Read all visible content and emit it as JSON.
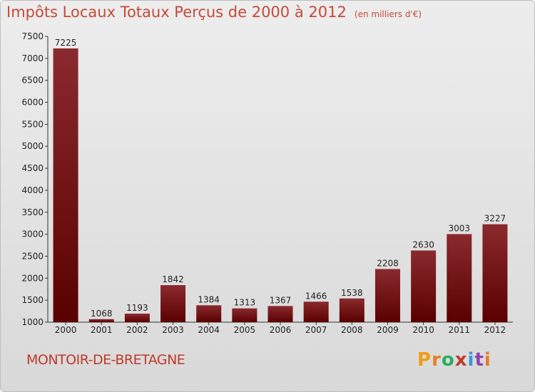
{
  "chart_data": {
    "type": "bar",
    "title": "Impôts Locaux Totaux Perçus de 2000 à 2012",
    "subtitle": "(en milliers d'€)",
    "categories": [
      "2000",
      "2001",
      "2002",
      "2003",
      "2004",
      "2005",
      "2006",
      "2007",
      "2008",
      "2009",
      "2010",
      "2011",
      "2012"
    ],
    "values": [
      7225,
      1068,
      1193,
      1842,
      1384,
      1313,
      1367,
      1466,
      1538,
      2208,
      2630,
      3003,
      3227
    ],
    "ylim": [
      1000,
      7500
    ],
    "yticks": [
      1000,
      1500,
      2000,
      2500,
      3000,
      3500,
      4000,
      4500,
      5000,
      5500,
      6000,
      6500,
      7000,
      7500
    ],
    "xlabel": "",
    "ylabel": "",
    "grid": false,
    "bar_color_top": "#8a2a2e",
    "bar_color_bottom": "#5a0000"
  },
  "footer": {
    "city": "MONTOIR-DE-BRETAGNE",
    "brand_letters": [
      "P",
      "r",
      "o",
      "x",
      "i",
      "t",
      "i"
    ],
    "brand_colors": [
      "#f39c12",
      "#e67e22",
      "#27ae60",
      "#c0392b",
      "#3498db",
      "#8e44ad",
      "#e67e22"
    ]
  }
}
